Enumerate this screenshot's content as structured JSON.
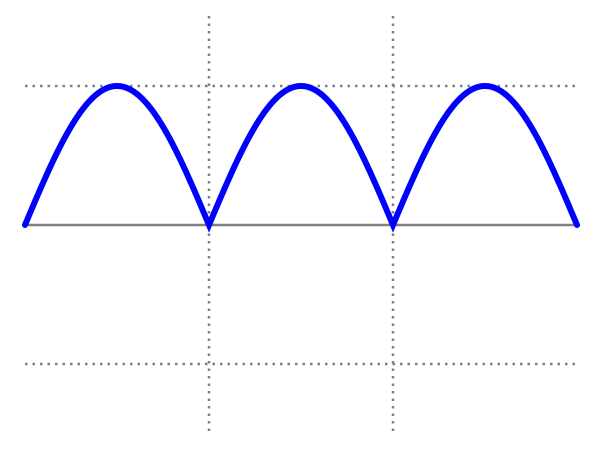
{
  "chart_data": {
    "type": "line",
    "title": "",
    "xlabel": "",
    "ylabel": "",
    "xlim": [
      0,
      3
    ],
    "ylim": [
      -1,
      1
    ],
    "grid": {
      "x_lines": [
        1,
        2
      ],
      "y_lines": [
        1,
        -1
      ],
      "style": "dotted"
    },
    "baseline": 0,
    "function": "abs(sin(pi*x))",
    "series": [
      {
        "x": [
          0,
          0.125,
          0.25,
          0.375,
          0.5,
          0.625,
          0.75,
          0.875,
          1,
          1.125,
          1.25,
          1.375,
          1.5,
          1.625,
          1.75,
          1.875,
          2,
          2.125,
          2.25,
          2.375,
          2.5,
          2.625,
          2.75,
          2.875,
          3
        ],
        "y": [
          0,
          0.383,
          0.707,
          0.924,
          1,
          0.924,
          0.707,
          0.383,
          0,
          0.383,
          0.707,
          0.924,
          1,
          0.924,
          0.707,
          0.383,
          0,
          0.383,
          0.707,
          0.924,
          1,
          0.924,
          0.707,
          0.383,
          0
        ]
      }
    ],
    "colors": {
      "line": "#0000ff",
      "baseline": "#808080",
      "grid": "#808080",
      "background": "#ffffff"
    }
  }
}
